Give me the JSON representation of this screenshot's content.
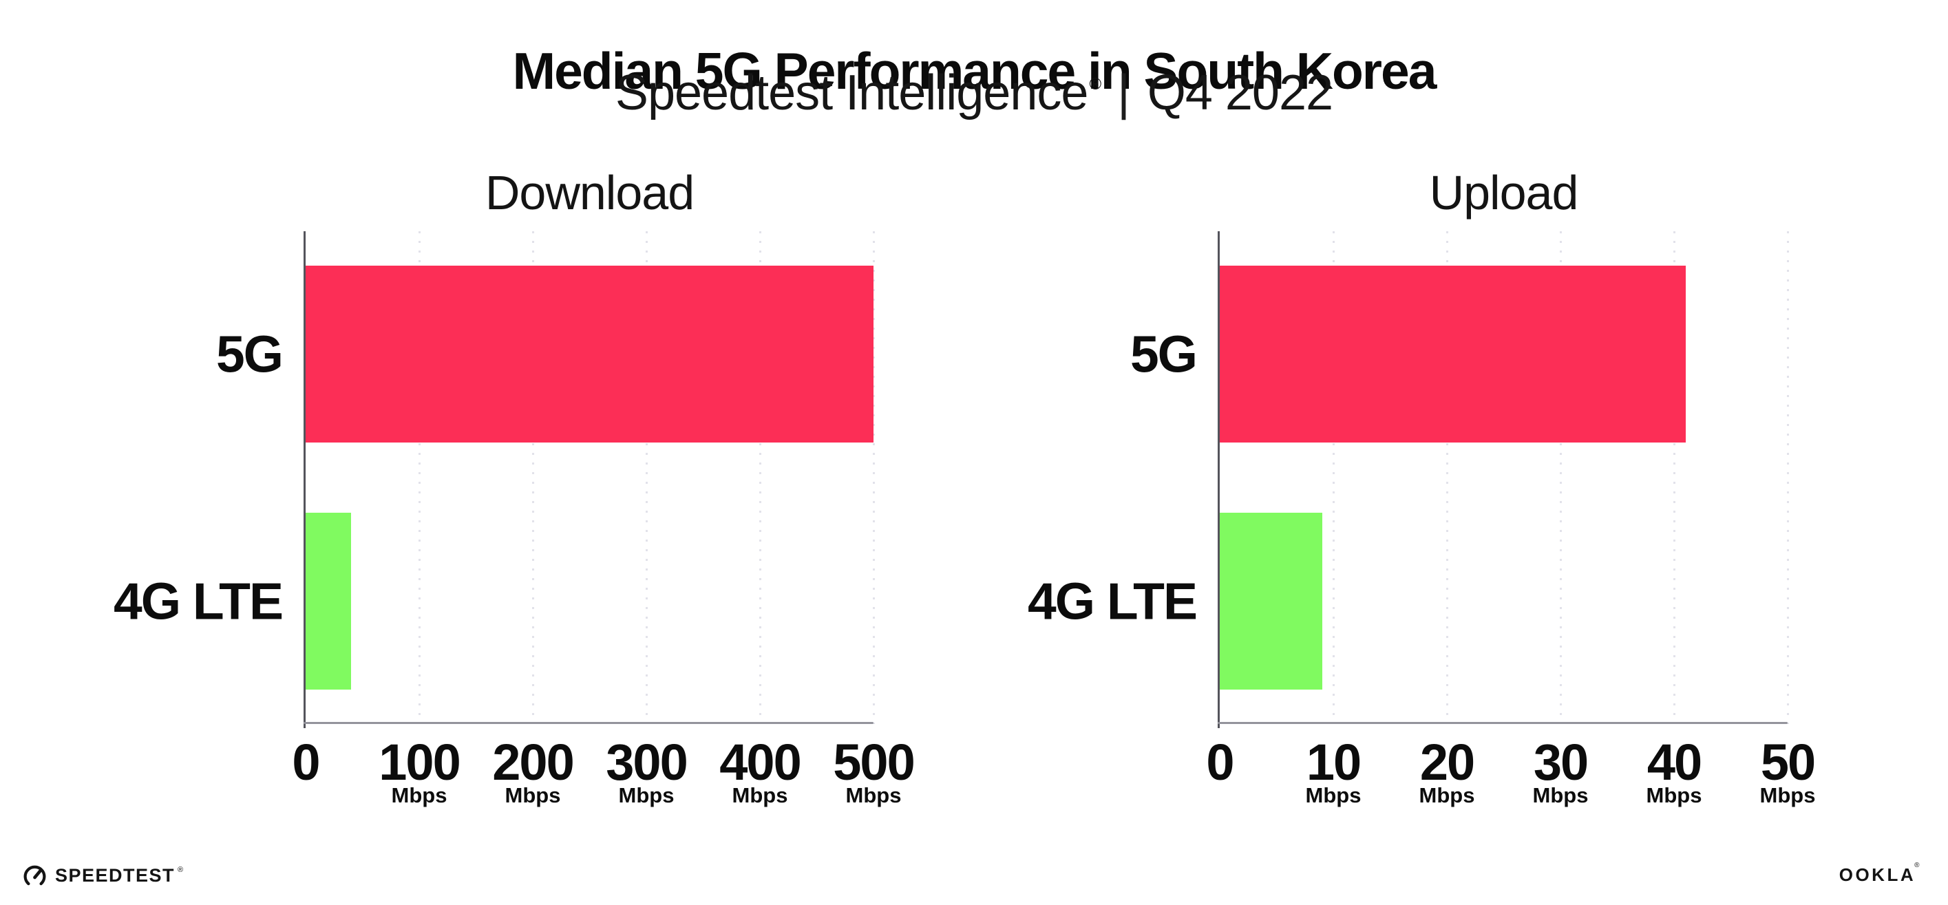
{
  "header": {
    "title": "Median 5G Performance in South Korea",
    "subtitle": {
      "brand": "Speedtest Intelligence",
      "registered_mark": "®",
      "divider": "|",
      "period": "Q4 2022"
    }
  },
  "chart_data": [
    {
      "type": "bar",
      "orientation": "horizontal",
      "title": "Download",
      "unit": "Mbps",
      "xlim": [
        0,
        500
      ],
      "grid": "dotted-vertical",
      "legend": "none",
      "categories": [
        "5G",
        "4G LTE"
      ],
      "values": [
        500,
        40
      ],
      "bar_colors": [
        "#fc2e56",
        "#80fa60"
      ],
      "ticks": [
        {
          "value": 0,
          "label": "0",
          "unit": ""
        },
        {
          "value": 100,
          "label": "100",
          "unit": "Mbps"
        },
        {
          "value": 200,
          "label": "200",
          "unit": "Mbps"
        },
        {
          "value": 300,
          "label": "300",
          "unit": "Mbps"
        },
        {
          "value": 400,
          "label": "400",
          "unit": "Mbps"
        },
        {
          "value": 500,
          "label": "500",
          "unit": "Mbps"
        }
      ]
    },
    {
      "type": "bar",
      "orientation": "horizontal",
      "title": "Upload",
      "unit": "Mbps",
      "xlim": [
        0,
        50
      ],
      "grid": "dotted-vertical",
      "legend": "none",
      "categories": [
        "5G",
        "4G LTE"
      ],
      "values": [
        41,
        9
      ],
      "bar_colors": [
        "#fc2e56",
        "#80fa60"
      ],
      "ticks": [
        {
          "value": 0,
          "label": "0",
          "unit": ""
        },
        {
          "value": 10,
          "label": "10",
          "unit": "Mbps"
        },
        {
          "value": 20,
          "label": "20",
          "unit": "Mbps"
        },
        {
          "value": 30,
          "label": "30",
          "unit": "Mbps"
        },
        {
          "value": 40,
          "label": "40",
          "unit": "Mbps"
        },
        {
          "value": 50,
          "label": "50",
          "unit": "Mbps"
        }
      ]
    }
  ],
  "footer": {
    "speedtest_logo_text": "SPEEDTEST",
    "speedtest_mark": "®",
    "ookla_logo_text": "OOKLA",
    "ookla_mark": "®"
  },
  "colors": {
    "bar_5g": "#fc2e56",
    "bar_4g_lte": "#80fa60",
    "text": "#0c0c0c",
    "y_axis": "#54545c",
    "x_axis": "#94949c",
    "gridline": "#e2e2ea",
    "background": "#ffffff"
  }
}
